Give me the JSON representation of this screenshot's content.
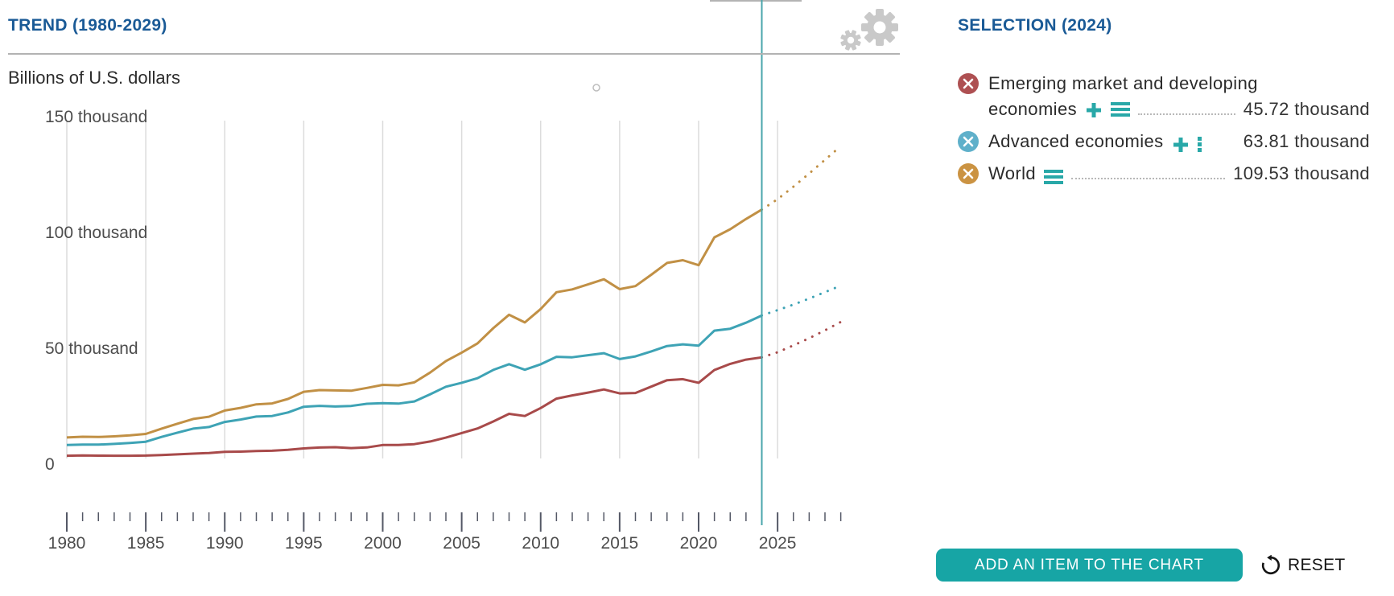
{
  "header": {
    "trend_title": "TREND (1980-2029)",
    "unit_label": "Billions of U.S. dollars"
  },
  "selection": {
    "title": "SELECTION (2024)",
    "items": [
      {
        "label_line1": "Emerging market and developing",
        "label_line2": "economies",
        "value": "45.72 thousand",
        "marker_color": "#ae5052",
        "icons": [
          "remove-x",
          "add-plus",
          "menu-bars",
          "dotted-leader"
        ]
      },
      {
        "label_line1": "Advanced economies",
        "label_line2": "",
        "value": "63.81 thousand",
        "marker_color": "#5fb0ca",
        "icons": [
          "remove-x",
          "add-plus",
          "menu-dots"
        ]
      },
      {
        "label_line1": "World",
        "label_line2": "",
        "value": "109.53 thousand",
        "marker_color": "#cb9342",
        "icons": [
          "remove-x",
          "menu-bars",
          "dotted-leader"
        ]
      }
    ]
  },
  "footer": {
    "add_button_label": "ADD AN ITEM TO THE CHART",
    "reset_label": "RESET"
  },
  "colors": {
    "accent_teal": "#17a5a5",
    "title_blue": "#1a5a96",
    "current_year_line": "#4aa6ab",
    "gridline": "#dcdcdc",
    "tick": "#545866",
    "gear_gray": "#c9c9c9"
  },
  "chart_data": {
    "type": "line",
    "title": "TREND (1980-2029)",
    "ylabel": "Billions of U.S. dollars",
    "x_range": [
      1980,
      2029
    ],
    "x_major_tick_step": 5,
    "x_major_tick_labels": [
      "1980",
      "1985",
      "1990",
      "1995",
      "2000",
      "2005",
      "2010",
      "2015",
      "2020",
      "2025"
    ],
    "ylim": [
      0,
      150
    ],
    "ytick_values": [
      0,
      50,
      100,
      150
    ],
    "ytick_labels": [
      "0",
      "50 thousand",
      "100 thousand",
      "150 thousand"
    ],
    "grid": "vertical-every-5-years",
    "legend_position": "right-panel",
    "current_year": 2024,
    "projection_from": 2024,
    "unit": "thousand billions of U.S. dollars",
    "x": [
      1980,
      1981,
      1982,
      1983,
      1984,
      1985,
      1986,
      1987,
      1988,
      1989,
      1990,
      1991,
      1992,
      1993,
      1994,
      1995,
      1996,
      1997,
      1998,
      1999,
      2000,
      2001,
      2002,
      2003,
      2004,
      2005,
      2006,
      2007,
      2008,
      2009,
      2010,
      2011,
      2012,
      2013,
      2014,
      2015,
      2016,
      2017,
      2018,
      2019,
      2020,
      2021,
      2022,
      2023,
      2024,
      2025,
      2026,
      2027,
      2028,
      2029
    ],
    "series": [
      {
        "name": "World",
        "color": "#c19045",
        "values": [
          11.13,
          11.46,
          11.34,
          11.63,
          12.04,
          12.66,
          14.96,
          17.07,
          19.12,
          20.12,
          22.78,
          23.91,
          25.46,
          25.85,
          27.78,
          30.86,
          31.58,
          31.45,
          31.33,
          32.54,
          33.85,
          33.63,
          34.94,
          39.18,
          44.13,
          47.78,
          51.76,
          58.34,
          64.12,
          60.79,
          66.61,
          73.87,
          75.08,
          77.21,
          79.43,
          75.17,
          76.48,
          81.39,
          86.51,
          87.66,
          85.51,
          97.54,
          101.03,
          105.44,
          109.53,
          114.0,
          119.4,
          125.1,
          131.0,
          136.9
        ]
      },
      {
        "name": "Advanced economies",
        "color": "#3ea3b5",
        "values": [
          7.88,
          8.06,
          8.05,
          8.37,
          8.79,
          9.31,
          11.38,
          13.23,
          14.96,
          15.66,
          17.86,
          18.88,
          20.19,
          20.43,
          21.94,
          24.42,
          24.8,
          24.5,
          24.77,
          25.71,
          25.96,
          25.77,
          26.7,
          29.78,
          33.06,
          34.74,
          36.73,
          40.3,
          42.78,
          40.37,
          42.76,
          45.96,
          45.77,
          46.68,
          47.55,
          45.01,
          46.15,
          48.29,
          50.64,
          51.36,
          50.77,
          57.27,
          58.1,
          60.7,
          63.81,
          66.1,
          68.5,
          71.1,
          73.9,
          76.7
        ]
      },
      {
        "name": "Emerging market and developing economies",
        "color": "#a84a4a",
        "values": [
          3.25,
          3.4,
          3.29,
          3.26,
          3.25,
          3.35,
          3.59,
          3.84,
          4.17,
          4.46,
          4.92,
          5.04,
          5.27,
          5.43,
          5.85,
          6.44,
          6.79,
          6.95,
          6.56,
          6.84,
          7.89,
          7.87,
          8.25,
          9.41,
          11.08,
          13.04,
          15.03,
          18.05,
          21.35,
          20.43,
          23.85,
          27.91,
          29.32,
          30.53,
          31.89,
          30.16,
          30.34,
          33.1,
          35.88,
          36.31,
          34.75,
          40.28,
          42.92,
          44.74,
          45.72,
          47.9,
          50.9,
          54.0,
          57.4,
          61.0
        ]
      }
    ],
    "values_at_current_year": {
      "World": "109.53 thousand",
      "Advanced economies": "63.81 thousand",
      "Emerging market and developing economies": "45.72 thousand"
    }
  }
}
